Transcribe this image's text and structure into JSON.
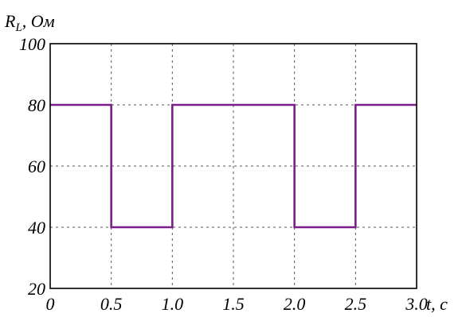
{
  "chart_data": {
    "type": "line",
    "step": true,
    "ylabel_main": "R",
    "ylabel_sub": "L",
    "ylabel_rest": ", Ом",
    "xlabel": "t, c",
    "xlim": [
      0,
      3.0
    ],
    "ylim": [
      20,
      100
    ],
    "x_ticks": [
      0,
      0.5,
      1.0,
      1.5,
      2.0,
      2.5,
      3.0
    ],
    "x_tick_labels": [
      "0",
      "0.5",
      "1.0",
      "1.5",
      "2.0",
      "2.5",
      "3.0"
    ],
    "y_ticks": [
      20,
      40,
      60,
      80,
      100
    ],
    "y_tick_labels": [
      "20",
      "40",
      "60",
      "80",
      "100"
    ],
    "grid": true,
    "colors": {
      "line": "#7b1e8c",
      "grid": "#555555",
      "axes": "#000000"
    },
    "series": [
      {
        "x": [
          0,
          0.5,
          0.5,
          1.0,
          1.0,
          2.0,
          2.0,
          2.5,
          2.5,
          3.0
        ],
        "y": [
          80,
          80,
          40,
          40,
          80,
          80,
          40,
          40,
          80,
          80
        ]
      }
    ]
  }
}
